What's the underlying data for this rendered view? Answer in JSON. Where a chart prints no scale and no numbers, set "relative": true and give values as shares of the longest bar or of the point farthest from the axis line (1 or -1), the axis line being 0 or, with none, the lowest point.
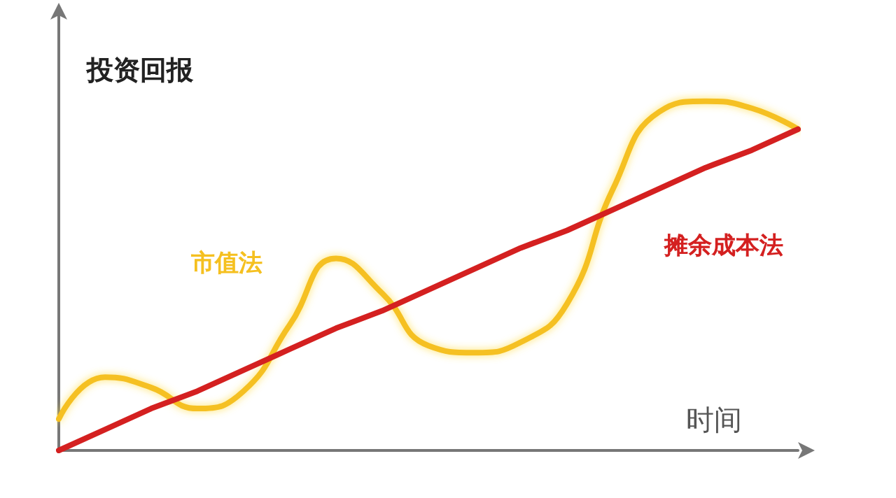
{
  "chart_data": {
    "type": "line",
    "relative": true,
    "xlabel": "时间",
    "ylabel": "投资回报",
    "categories": [
      null,
      null,
      null,
      null,
      null,
      null,
      null,
      null,
      null,
      null,
      null,
      null,
      null,
      null,
      null,
      null,
      null
    ],
    "grid": false,
    "legend": false,
    "line_style": "solid",
    "series": [
      {
        "name": "市值法",
        "color": "#f5c020",
        "values": [
          0.09,
          0.21,
          0.18,
          0.12,
          0.17,
          0.36,
          0.55,
          0.45,
          0.3,
          0.28,
          0.31,
          0.42,
          0.75,
          0.97,
          1.0,
          0.98,
          0.92
        ]
      },
      {
        "name": "摊余成本法",
        "color": "#d42020",
        "values": [
          0,
          0.06,
          0.12,
          0.17,
          0.23,
          0.29,
          0.35,
          0.4,
          0.46,
          0.52,
          0.58,
          0.63,
          0.69,
          0.75,
          0.81,
          0.86,
          0.92
        ]
      }
    ]
  }
}
